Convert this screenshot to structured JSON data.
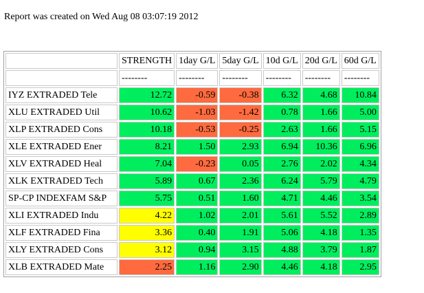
{
  "report": {
    "created_text": "Report was created on Wed Aug 08 03:07:19 2012"
  },
  "colors": {
    "green": "#00ee5e",
    "red": "#ff6b3e",
    "yellow": "#ffff00",
    "border": "#c8c8c8"
  },
  "table": {
    "headers": [
      "STRENGTH",
      "1day G/L",
      "5day G/L",
      "10d G/L",
      "20d G/L",
      "60d G/L"
    ],
    "separator": [
      "--------",
      "--------",
      "--------",
      "--------",
      "--------",
      "--------"
    ],
    "rows": [
      {
        "name": "IYZ EXTRADED Tele",
        "values": [
          "12.72",
          "-0.59",
          "-0.38",
          "6.32",
          "4.68",
          "10.84"
        ],
        "colors": [
          "green",
          "red",
          "red",
          "green",
          "green",
          "green"
        ]
      },
      {
        "name": "XLU EXTRADED Util",
        "values": [
          "10.62",
          "-1.03",
          "-1.42",
          "0.78",
          "1.66",
          "5.00"
        ],
        "colors": [
          "green",
          "red",
          "red",
          "green",
          "green",
          "green"
        ]
      },
      {
        "name": "XLP EXTRADED Cons",
        "values": [
          "10.18",
          "-0.53",
          "-0.25",
          "2.63",
          "1.66",
          "5.15"
        ],
        "colors": [
          "green",
          "red",
          "red",
          "green",
          "green",
          "green"
        ]
      },
      {
        "name": "XLE EXTRADED Ener",
        "values": [
          "8.21",
          "1.50",
          "2.93",
          "6.94",
          "10.36",
          "6.96"
        ],
        "colors": [
          "green",
          "green",
          "green",
          "green",
          "green",
          "green"
        ]
      },
      {
        "name": "XLV EXTRADED Heal",
        "values": [
          "7.04",
          "-0.23",
          "0.05",
          "2.76",
          "2.02",
          "4.34"
        ],
        "colors": [
          "green",
          "red",
          "green",
          "green",
          "green",
          "green"
        ]
      },
      {
        "name": "XLK EXTRADED Tech",
        "values": [
          "5.89",
          "0.67",
          "2.36",
          "6.24",
          "5.79",
          "4.79"
        ],
        "colors": [
          "green",
          "green",
          "green",
          "green",
          "green",
          "green"
        ]
      },
      {
        "name": "SP-CP INDEXFAM S&P",
        "values": [
          "5.75",
          "0.51",
          "1.60",
          "4.71",
          "4.46",
          "3.54"
        ],
        "colors": [
          "green",
          "green",
          "green",
          "green",
          "green",
          "green"
        ]
      },
      {
        "name": "XLI EXTRADED Indu",
        "values": [
          "4.22",
          "1.02",
          "2.01",
          "5.61",
          "5.52",
          "2.89"
        ],
        "colors": [
          "yellow",
          "green",
          "green",
          "green",
          "green",
          "green"
        ]
      },
      {
        "name": "XLF EXTRADED Fina",
        "values": [
          "3.36",
          "0.40",
          "1.91",
          "5.06",
          "4.18",
          "1.35"
        ],
        "colors": [
          "yellow",
          "green",
          "green",
          "green",
          "green",
          "green"
        ]
      },
      {
        "name": "XLY EXTRADED Cons",
        "values": [
          "3.12",
          "0.94",
          "3.15",
          "4.88",
          "3.79",
          "1.87"
        ],
        "colors": [
          "yellow",
          "green",
          "green",
          "green",
          "green",
          "green"
        ]
      },
      {
        "name": "XLB EXTRADED Mate",
        "values": [
          "2.25",
          "1.16",
          "2.90",
          "4.46",
          "4.18",
          "2.95"
        ],
        "colors": [
          "red",
          "green",
          "green",
          "green",
          "green",
          "green"
        ]
      }
    ]
  }
}
